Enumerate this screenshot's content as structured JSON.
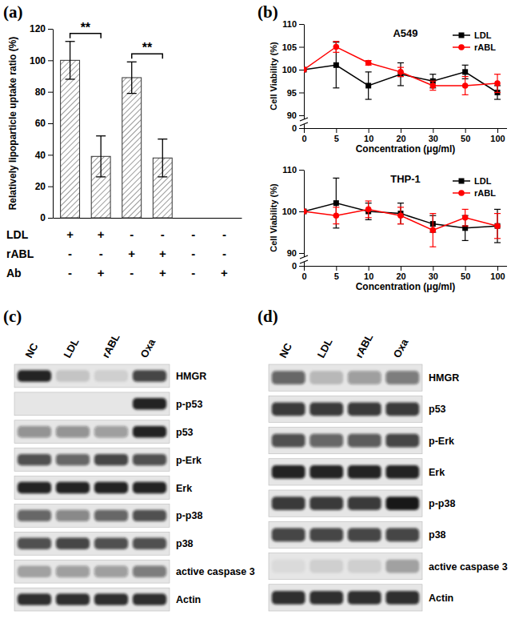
{
  "chart_data": [
    {
      "type": "bar",
      "panel": "(a)",
      "y_label": "Relatively lipoparticle uptake ratio (%)",
      "categories": [
        null,
        null,
        null,
        null,
        null,
        null
      ],
      "values": [
        100,
        39,
        89,
        38,
        0,
        0
      ],
      "errors": [
        12,
        13,
        10,
        12,
        null,
        null
      ],
      "color": "#ffffff",
      "ylim": [
        0,
        120
      ],
      "yticks": [
        0,
        20,
        40,
        60,
        80,
        100,
        120
      ],
      "tick_labels": "y",
      "conditions": [
        {
          "name": "LDL",
          "values": [
            "+",
            "+",
            "-",
            "-",
            "-",
            "-"
          ]
        },
        {
          "name": "rABL",
          "values": [
            "-",
            "-",
            "+",
            "+",
            "-",
            "-"
          ]
        },
        {
          "name": "Ab",
          "values": [
            "-",
            "+",
            "-",
            "+",
            "-",
            "+"
          ]
        }
      ],
      "annotations": [
        {
          "text": "**",
          "between": [
            0,
            1
          ]
        },
        {
          "text": "**",
          "between": [
            2,
            3
          ]
        }
      ]
    },
    {
      "type": "line",
      "panel": "(b)",
      "title": "A549",
      "x_label": "Concentration (μg/ml)",
      "y_label": "Cell Viability (%)",
      "categories": [
        "0",
        "5",
        "10",
        "20",
        "30",
        "50",
        "100"
      ],
      "ylim": [
        0,
        110
      ],
      "yticks": [
        0,
        90,
        95,
        100,
        105,
        110
      ],
      "legend": "upper right",
      "series": [
        {
          "name": "LDL",
          "color": "#000000",
          "marker": "square",
          "values": [
            100,
            101,
            96.5,
            99,
            97.5,
            99.5,
            95
          ],
          "errors": [
            0,
            5,
            3,
            2.5,
            1.5,
            1.5,
            1.5
          ]
        },
        {
          "name": "rABL",
          "color": "#ff0000",
          "marker": "circle",
          "values": [
            100,
            105,
            101.5,
            99.5,
            96.5,
            96.5,
            97
          ],
          "errors": [
            0,
            1.2,
            0.5,
            1,
            1,
            2,
            2
          ]
        }
      ]
    },
    {
      "type": "line",
      "title": "THP-1",
      "x_label": "Concentration (μg/ml)",
      "y_label": "Cell Viability (%)",
      "categories": [
        "0",
        "5",
        "10",
        "20",
        "30",
        "50",
        "100"
      ],
      "ylim": [
        0,
        110
      ],
      "yticks": [
        0,
        90,
        100,
        110
      ],
      "legend": "upper right",
      "series": [
        {
          "name": "LDL",
          "color": "#000000",
          "marker": "square",
          "values": [
            100,
            102,
            100,
            99.5,
            97,
            96,
            96.5
          ],
          "errors": [
            0,
            6,
            2,
            2.5,
            2,
            3,
            4
          ]
        },
        {
          "name": "rABL",
          "color": "#ff0000",
          "marker": "circle",
          "values": [
            100,
            99,
            100.5,
            99,
            95.5,
            98.5,
            96.5
          ],
          "errors": [
            0,
            2,
            2,
            2,
            4,
            2,
            3
          ]
        }
      ]
    },
    {
      "type": "western_blot",
      "panel": "(c)",
      "lanes": [
        "NC",
        "LDL",
        "rABL",
        "Oxa"
      ],
      "rows": [
        {
          "name": "HMGR",
          "intensity": [
            0.9,
            0.15,
            0.1,
            0.75
          ]
        },
        {
          "name": "p-p53",
          "intensity": [
            0,
            0,
            0,
            0.9
          ]
        },
        {
          "name": "p53",
          "intensity": [
            0.4,
            0.4,
            0.35,
            0.9
          ]
        },
        {
          "name": "p-Erk",
          "intensity": [
            0.7,
            0.6,
            0.75,
            0.7
          ]
        },
        {
          "name": "Erk",
          "intensity": [
            0.9,
            0.9,
            0.9,
            0.9
          ]
        },
        {
          "name": "p-p38",
          "intensity": [
            0.6,
            0.45,
            0.6,
            0.7
          ]
        },
        {
          "name": "p38",
          "intensity": [
            0.7,
            0.75,
            0.7,
            0.7
          ]
        },
        {
          "name": "active caspase 3",
          "intensity": [
            0.3,
            0.35,
            0.35,
            0.5
          ]
        },
        {
          "name": "Actin",
          "intensity": [
            0.85,
            0.85,
            0.85,
            0.85
          ]
        }
      ]
    },
    {
      "type": "western_blot",
      "panel": "(d)",
      "lanes": [
        "NC",
        "LDL",
        "rABL",
        "Oxa"
      ],
      "rows": [
        {
          "name": "HMGR",
          "intensity": [
            0.6,
            0.2,
            0.35,
            0.5
          ]
        },
        {
          "name": "p53",
          "intensity": [
            0.8,
            0.8,
            0.8,
            0.8
          ]
        },
        {
          "name": "p-Erk",
          "intensity": [
            0.7,
            0.6,
            0.65,
            0.75
          ]
        },
        {
          "name": "Erk",
          "intensity": [
            0.9,
            0.9,
            0.9,
            0.9
          ]
        },
        {
          "name": "p-p38",
          "intensity": [
            0.8,
            0.8,
            0.8,
            0.95
          ]
        },
        {
          "name": "p38",
          "intensity": [
            0.75,
            0.75,
            0.75,
            0.75
          ]
        },
        {
          "name": "active caspase 3",
          "intensity": [
            0.05,
            0.1,
            0.1,
            0.3
          ]
        },
        {
          "name": "Actin",
          "intensity": [
            0.85,
            0.85,
            0.85,
            0.85
          ]
        }
      ]
    }
  ]
}
